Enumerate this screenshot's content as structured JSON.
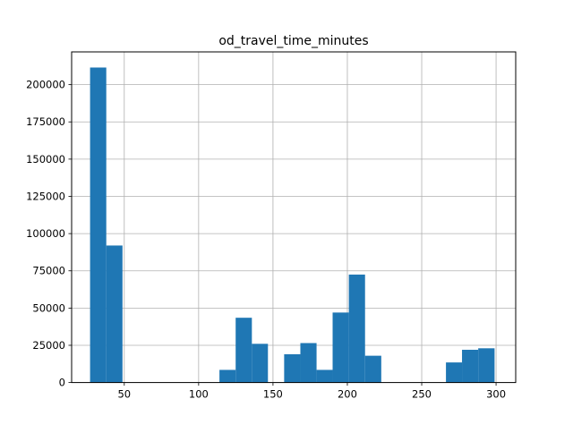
{
  "chart_data": {
    "type": "bar",
    "subtype": "histogram",
    "title": "od_travel_time_minutes",
    "xlabel": "",
    "ylabel": "",
    "xlim": [
      14.6,
      313.2
    ],
    "ylim": [
      0,
      222000
    ],
    "grid": true,
    "bin_edges": [
      27.0,
      37.9,
      48.8,
      59.6,
      70.5,
      81.4,
      92.3,
      103.1,
      114.0,
      124.9,
      135.8,
      146.6,
      157.5,
      168.4,
      179.3,
      190.1,
      201.0,
      211.9,
      222.8,
      233.6,
      244.5,
      255.4,
      266.3,
      277.1,
      288.0,
      299.0
    ],
    "counts": [
      211500,
      92000,
      0,
      0,
      0,
      0,
      0,
      0,
      8500,
      43500,
      26000,
      0,
      19000,
      26500,
      8500,
      47000,
      72500,
      18000,
      0,
      0,
      0,
      0,
      13500,
      22000,
      23000
    ],
    "x_ticks": [
      {
        "value": 50,
        "label": "50"
      },
      {
        "value": 100,
        "label": "100"
      },
      {
        "value": 150,
        "label": "150"
      },
      {
        "value": 200,
        "label": "200"
      },
      {
        "value": 250,
        "label": "250"
      },
      {
        "value": 300,
        "label": "300"
      }
    ],
    "y_ticks": [
      {
        "value": 0,
        "label": "0"
      },
      {
        "value": 25000,
        "label": "25000"
      },
      {
        "value": 50000,
        "label": "50000"
      },
      {
        "value": 75000,
        "label": "75000"
      },
      {
        "value": 100000,
        "label": "100000"
      },
      {
        "value": 125000,
        "label": "125000"
      },
      {
        "value": 150000,
        "label": "150000"
      },
      {
        "value": 175000,
        "label": "175000"
      },
      {
        "value": 200000,
        "label": "200000"
      }
    ],
    "colors": {
      "bar": "#1f77b4",
      "grid": "#b0b0b0",
      "axes": "#000000"
    }
  }
}
